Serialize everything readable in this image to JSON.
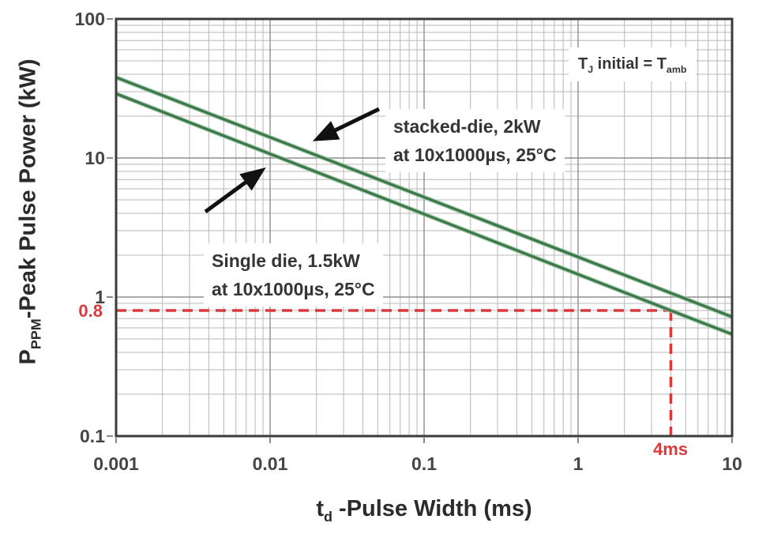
{
  "chart_data": {
    "type": "line",
    "x_scale": "log",
    "y_scale": "log",
    "xlim": [
      0.001,
      10
    ],
    "ylim": [
      0.1,
      100
    ],
    "grid": "on",
    "x_tick_labels": [
      "0.001",
      "0.01",
      "0.1",
      "1",
      "10"
    ],
    "y_tick_labels": [
      "100",
      "10",
      "1",
      "0.1"
    ],
    "axes": {
      "x": {
        "sym": "t",
        "sub": "d",
        "rest": " -Pulse Width (ms)"
      },
      "y": {
        "sym": "P",
        "sub": "PPM",
        "rest": "-Peak Pulse Power (kW)"
      }
    },
    "series": [
      {
        "name": "stacked-die",
        "label": "stacked-die, 2kW at 10x1000µs, 25°C",
        "color": "#3d7a4a",
        "halo_color": "#a3c6a9",
        "points": [
          [
            0.001,
            38
          ],
          [
            10,
            0.72
          ]
        ]
      },
      {
        "name": "single-die",
        "label": "Single die, 1.5kW at 10x1000µs, 25°C",
        "color": "#3d7a4a",
        "halo_color": "#a3c6a9",
        "points": [
          [
            0.001,
            29
          ],
          [
            4,
            0.8
          ],
          [
            10,
            0.54
          ]
        ]
      }
    ],
    "guides": {
      "x_value": 4,
      "y_value": 0.8,
      "x_label": "4ms",
      "y_label": "0.8",
      "color": "#da3b3a"
    },
    "arrows": [
      {
        "target": "stacked-die",
        "from": [
          0.051,
          22.5
        ],
        "to": [
          0.0189,
          13.2
        ]
      },
      {
        "target": "single-die",
        "from": [
          0.0038,
          4.11
        ],
        "to": [
          0.0094,
          8.55
        ]
      }
    ],
    "annotations": {
      "condition": {
        "sym1": "T",
        "sub1": "J",
        "mid": " initial = ",
        "sym2": "T",
        "sub2": "amb"
      },
      "stacked": {
        "line1": "stacked-die, 2kW",
        "line2": "at 10x1000µs, 25°C"
      },
      "single": {
        "line1": "Single die, 1.5kW",
        "line2": "at 10x1000µs, 25°C"
      }
    },
    "colors": {
      "grid_minor": "#b8b8b8",
      "grid_major": "#8f8f8f",
      "border": "#3b3b3b",
      "tick_mark": "#8a8a8a",
      "arrow": "#111111"
    }
  }
}
